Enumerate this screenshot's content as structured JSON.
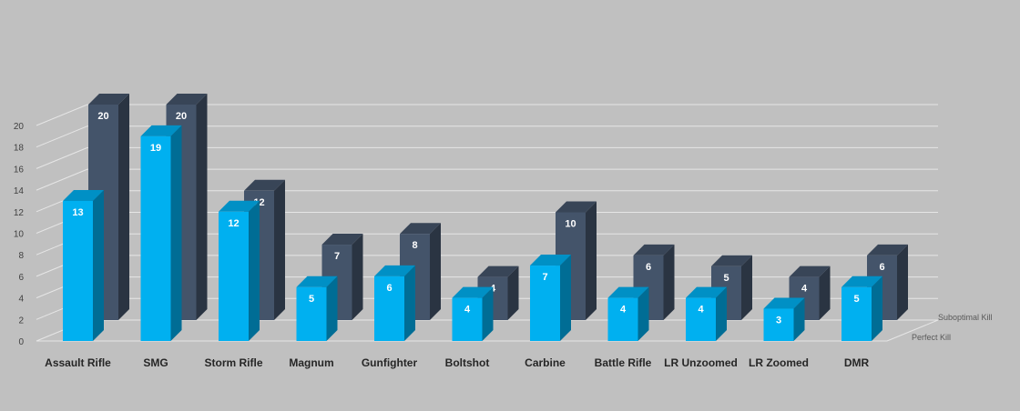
{
  "chart_data": {
    "type": "bar",
    "categories": [
      "Assault Rifle",
      "SMG",
      "Storm Rifle",
      "Magnum",
      "Gunfighter",
      "Boltshot",
      "Carbine",
      "Battle Rifle",
      "LR Unzoomed",
      "LR Zoomed",
      "DMR"
    ],
    "series": [
      {
        "name": "Perfect Kill",
        "color": "#00b0f0",
        "values": [
          13,
          19,
          12,
          5,
          6,
          4,
          7,
          4,
          4,
          3,
          5
        ]
      },
      {
        "name": "Suboptimal Kill",
        "color": "#44546a",
        "values": [
          20,
          20,
          12,
          7,
          8,
          4,
          10,
          6,
          5,
          4,
          6
        ]
      }
    ],
    "yticks": [
      0,
      2,
      4,
      6,
      8,
      10,
      12,
      14,
      16,
      18,
      20
    ],
    "ylim": [
      0,
      20
    ],
    "grid": true,
    "style": "3d-column",
    "legend": "series labels on depth axis, bottom-right"
  }
}
